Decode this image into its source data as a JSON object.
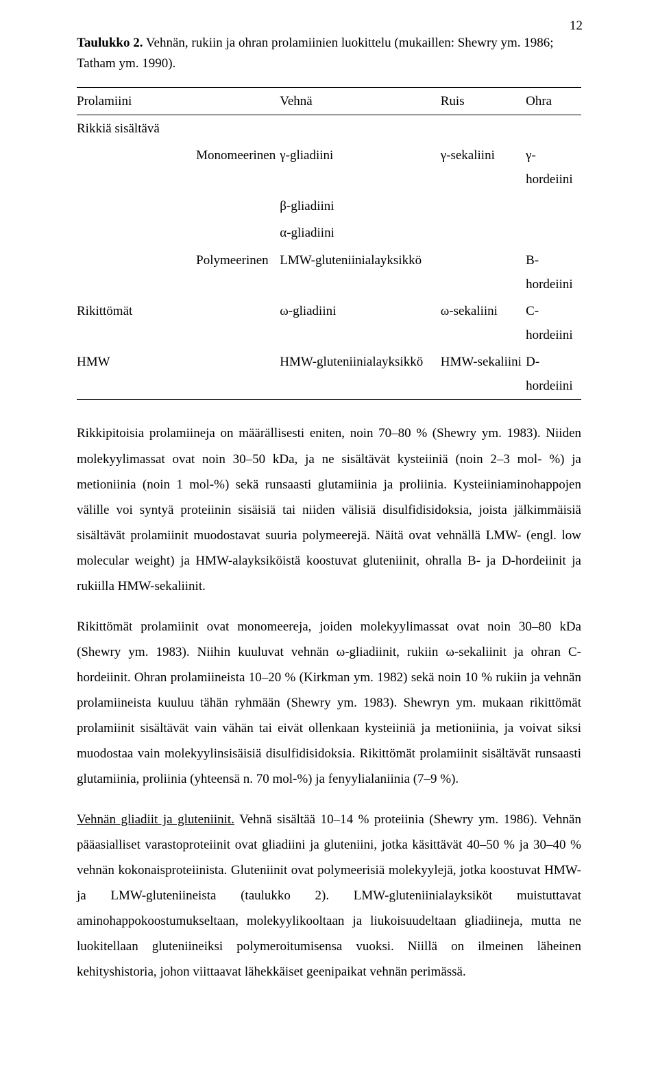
{
  "page_number": "12",
  "caption": {
    "label": "Taulukko 2.",
    "text": " Vehnän, rukiin ja ohran prolamiinien luokittelu (mukaillen: Shewry ym. 1986; Tatham ym. 1990)."
  },
  "table": {
    "header": {
      "c0": "Prolamiini",
      "c2": "Vehnä",
      "c3": "Ruis",
      "c4": "Ohra"
    },
    "r1": {
      "c0": "Rikkiä sisältävä"
    },
    "r2": {
      "c1": "Monomeerinen",
      "c2": "γ-gliadiini",
      "c3": "γ-sekaliini",
      "c4": "γ-hordeiini"
    },
    "r3": {
      "c2": "β-gliadiini"
    },
    "r4": {
      "c2": "α-gliadiini"
    },
    "r5": {
      "c1": "Polymeerinen",
      "c2": "LMW-gluteniinialayksikkö",
      "c4": "B-hordeiini"
    },
    "r6": {
      "c0": "Rikittömät",
      "c2": "ω-gliadiini",
      "c3": "ω-sekaliini",
      "c4": "C-hordeiini"
    },
    "r7": {
      "c0": "HMW",
      "c2": "HMW-gluteniinialayksikkö",
      "c3": "HMW-sekaliini",
      "c4": "D-hordeiini"
    }
  },
  "para1": "Rikkipitoisia prolamiineja on määrällisesti eniten, noin 70–80 % (Shewry ym. 1983). Niiden molekyylimassat ovat noin 30–50 kDa, ja ne sisältävät kysteiiniä (noin 2–3 mol- %) ja metioniinia (noin 1 mol-%) sekä runsaasti glutamiinia ja proliinia. Kysteiiniaminohappojen välille voi syntyä proteiinin sisäisiä tai niiden välisiä disulfidisidoksia, joista jälkimmäisiä sisältävät prolamiinit muodostavat suuria polymeerejä. Näitä ovat vehnällä LMW- (engl. low molecular weight) ja HMW-alayksiköistä koostuvat gluteniinit, ohralla B- ja D-hordeiinit ja rukiilla HMW-sekaliinit.",
  "para2": "Rikittömät prolamiinit ovat monomeereja, joiden molekyylimassat ovat noin 30–80 kDa (Shewry ym. 1983). Niihin kuuluvat vehnän ω-gliadiinit, rukiin ω-sekaliinit ja ohran C-hordeiinit. Ohran prolamiineista 10–20 % (Kirkman ym. 1982) sekä noin 10 % rukiin ja vehnän prolamiineista kuuluu tähän ryhmään (Shewry ym. 1983). Shewryn ym. mukaan rikittömät prolamiinit sisältävät vain vähän tai eivät ollenkaan kysteiiniä ja metioniinia, ja voivat siksi muodostaa vain molekyylinsisäisiä disulfidisidoksia. Rikittömät prolamiinit sisältävät runsaasti glutamiinia, proliinia (yhteensä n. 70 mol-%) ja fenyylialaniinia (7–9 %).",
  "para3_underlined": "Vehnän gliadiit ja gluteniinit.",
  "para3_rest": " Vehnä sisältää 10–14 % proteiinia (Shewry ym. 1986). Vehnän pääasialliset varastoproteiinit ovat gliadiini ja gluteniini, jotka käsittävät 40–50 % ja 30–40 % vehnän kokonaisproteiinista. Gluteniinit ovat polymeerisiä molekyylejä, jotka koostuvat HMW- ja LMW-gluteniineista (taulukko 2). LMW-gluteniinialayksiköt muistuttavat aminohappokoostumukseltaan, molekyylikooltaan ja liukoisuudeltaan gliadiineja, mutta ne luokitellaan gluteniineiksi polymeroitumisensa vuoksi. Niillä on ilmeinen läheinen kehityshistoria, johon viittaavat lähekkäiset geenipaikat vehnän perimässä."
}
